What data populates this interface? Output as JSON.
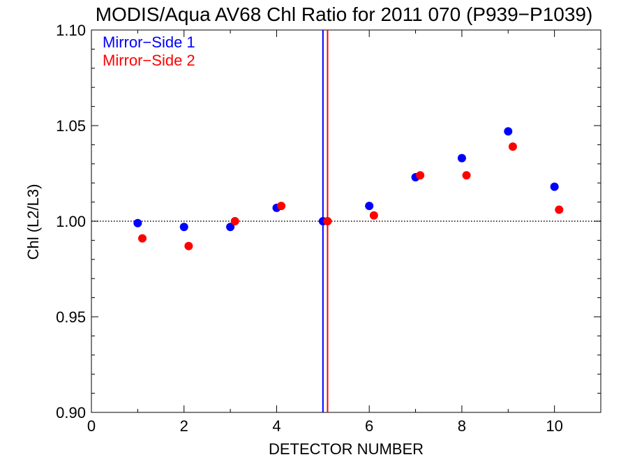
{
  "chart_data": {
    "type": "scatter",
    "title": "MODIS/Aqua AV68 Chl Ratio for 2011 070 (P939−P1039)",
    "xlabel": "DETECTOR NUMBER",
    "ylabel": "Chl (L2/L3)",
    "xlim": [
      0,
      11
    ],
    "ylim": [
      0.9,
      1.1
    ],
    "xticks": [
      0,
      2,
      4,
      6,
      8,
      10
    ],
    "xtick_labels": [
      "0",
      "2",
      "4",
      "6",
      "8",
      "10"
    ],
    "yticks": [
      0.9,
      0.95,
      1.0,
      1.05,
      1.1
    ],
    "ytick_labels": [
      "0.90",
      "0.95",
      "1.00",
      "1.05",
      "1.10"
    ],
    "reference_line": {
      "y": 1.0,
      "style": "dotted"
    },
    "legend_position": "top-left",
    "series": [
      {
        "name": "Mirror−Side 1",
        "color": "#0000ff",
        "x": [
          1,
          2,
          3,
          4,
          5,
          6,
          7,
          8,
          9,
          10
        ],
        "y": [
          0.999,
          0.997,
          0.997,
          1.007,
          1.0,
          1.008,
          1.023,
          1.033,
          1.047,
          1.018
        ],
        "vline_x": 5.0
      },
      {
        "name": "Mirror−Side 2",
        "color": "#ff0000",
        "x": [
          1.1,
          2.1,
          3.1,
          4.1,
          5.1,
          6.1,
          7.1,
          8.1,
          9.1,
          10.1
        ],
        "y": [
          0.991,
          0.987,
          1.0,
          1.008,
          1.0,
          1.003,
          1.024,
          1.024,
          1.039,
          1.006
        ],
        "vline_x": 5.1
      }
    ]
  }
}
